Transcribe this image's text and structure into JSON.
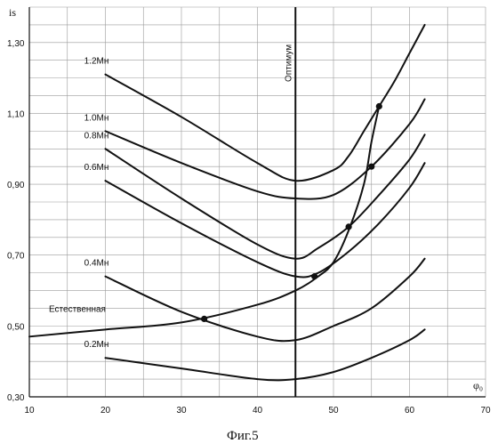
{
  "chart_data": {
    "type": "line",
    "xlabel": "φ₀",
    "ylabel": "is",
    "xlim": [
      10,
      70
    ],
    "ylim": [
      0.3,
      1.4
    ],
    "grid": true,
    "xticks": [
      10,
      20,
      30,
      40,
      50,
      60,
      70
    ],
    "yticks": [
      0.3,
      0.5,
      0.7,
      0.9,
      1.1,
      1.3
    ],
    "ytick_labels": [
      "0,30",
      "0,50",
      "0,70",
      "0,90",
      "1,10",
      "1,30"
    ],
    "caption": "Фиг.5",
    "vertical_line": {
      "x": 45,
      "label": "Оптимум"
    },
    "series": [
      {
        "name": "1.2Мн",
        "x": [
          20,
          30,
          40,
          45,
          50,
          52,
          54,
          56,
          58,
          60,
          62
        ],
        "y": [
          1.21,
          1.09,
          0.96,
          0.91,
          0.94,
          0.98,
          1.05,
          1.12,
          1.19,
          1.27,
          1.35
        ]
      },
      {
        "name": "1.0Мн",
        "x": [
          20,
          30,
          40,
          45,
          50,
          55,
          60,
          62
        ],
        "y": [
          1.05,
          0.96,
          0.88,
          0.86,
          0.87,
          0.95,
          1.07,
          1.14
        ]
      },
      {
        "name": "0.8Мн",
        "x": [
          20,
          30,
          40,
          45,
          48,
          52,
          56,
          60,
          62
        ],
        "y": [
          1.0,
          0.86,
          0.73,
          0.69,
          0.72,
          0.78,
          0.87,
          0.97,
          1.04
        ]
      },
      {
        "name": "0.6Мн",
        "x": [
          20,
          30,
          40,
          45,
          48,
          52,
          56,
          60,
          62
        ],
        "y": [
          0.91,
          0.79,
          0.68,
          0.64,
          0.65,
          0.71,
          0.79,
          0.89,
          0.96
        ]
      },
      {
        "name": "0.4Мн",
        "x": [
          20,
          30,
          40,
          45,
          50,
          55,
          60,
          62
        ],
        "y": [
          0.64,
          0.54,
          0.47,
          0.46,
          0.5,
          0.55,
          0.64,
          0.69
        ]
      },
      {
        "name": "Естественная",
        "x": [
          10,
          20,
          30,
          40,
          45,
          48,
          50,
          52,
          54,
          55,
          56
        ],
        "y": [
          0.47,
          0.49,
          0.51,
          0.56,
          0.6,
          0.64,
          0.68,
          0.77,
          0.9,
          1.02,
          1.12
        ]
      },
      {
        "name": "0.2Мн",
        "x": [
          20,
          30,
          40,
          45,
          50,
          55,
          60,
          62
        ],
        "y": [
          0.41,
          0.38,
          0.35,
          0.35,
          0.37,
          0.41,
          0.46,
          0.49
        ]
      }
    ],
    "intersection_points": [
      {
        "x": 33,
        "y": 0.52
      },
      {
        "x": 47.5,
        "y": 0.64
      },
      {
        "x": 52,
        "y": 0.78
      },
      {
        "x": 55,
        "y": 0.95
      },
      {
        "x": 56,
        "y": 1.12
      }
    ],
    "colors": {
      "line": "#111111",
      "grid": "#9a9a9a",
      "axes": "#111111"
    }
  }
}
